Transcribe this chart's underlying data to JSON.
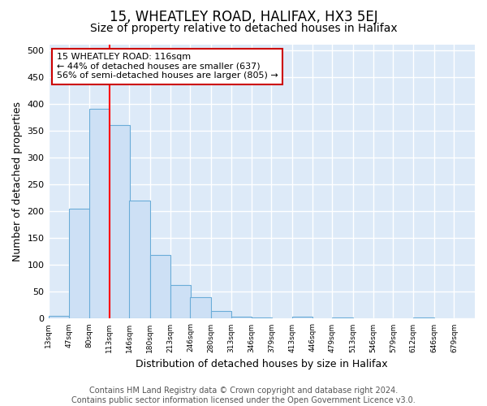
{
  "title": "15, WHEATLEY ROAD, HALIFAX, HX3 5EJ",
  "subtitle": "Size of property relative to detached houses in Halifax",
  "xlabel": "Distribution of detached houses by size in Halifax",
  "ylabel": "Number of detached properties",
  "bar_edges": [
    13,
    47,
    80,
    113,
    146,
    180,
    213,
    246,
    280,
    313,
    346,
    379,
    413,
    446,
    479,
    513,
    546,
    579,
    612,
    646,
    679
  ],
  "bar_heights": [
    5,
    205,
    390,
    360,
    220,
    118,
    62,
    40,
    15,
    3,
    2,
    1,
    3,
    0,
    2,
    0,
    0,
    0,
    2,
    0
  ],
  "bar_color": "#cde0f5",
  "bar_edgecolor": "#6aacd8",
  "red_line_x": 113,
  "annotation_text": "15 WHEATLEY ROAD: 116sqm\n← 44% of detached houses are smaller (637)\n56% of semi-detached houses are larger (805) →",
  "annotation_box_color": "white",
  "annotation_box_edgecolor": "#cc0000",
  "ylim": [
    0,
    510
  ],
  "yticks": [
    0,
    50,
    100,
    150,
    200,
    250,
    300,
    350,
    400,
    450,
    500
  ],
  "background_color": "#ddeaf8",
  "grid_color": "white",
  "footer_text": "Contains HM Land Registry data © Crown copyright and database right 2024.\nContains public sector information licensed under the Open Government Licence v3.0.",
  "title_fontsize": 12,
  "subtitle_fontsize": 10,
  "xlabel_fontsize": 9,
  "ylabel_fontsize": 9,
  "footer_fontsize": 7,
  "annot_fontsize": 8
}
